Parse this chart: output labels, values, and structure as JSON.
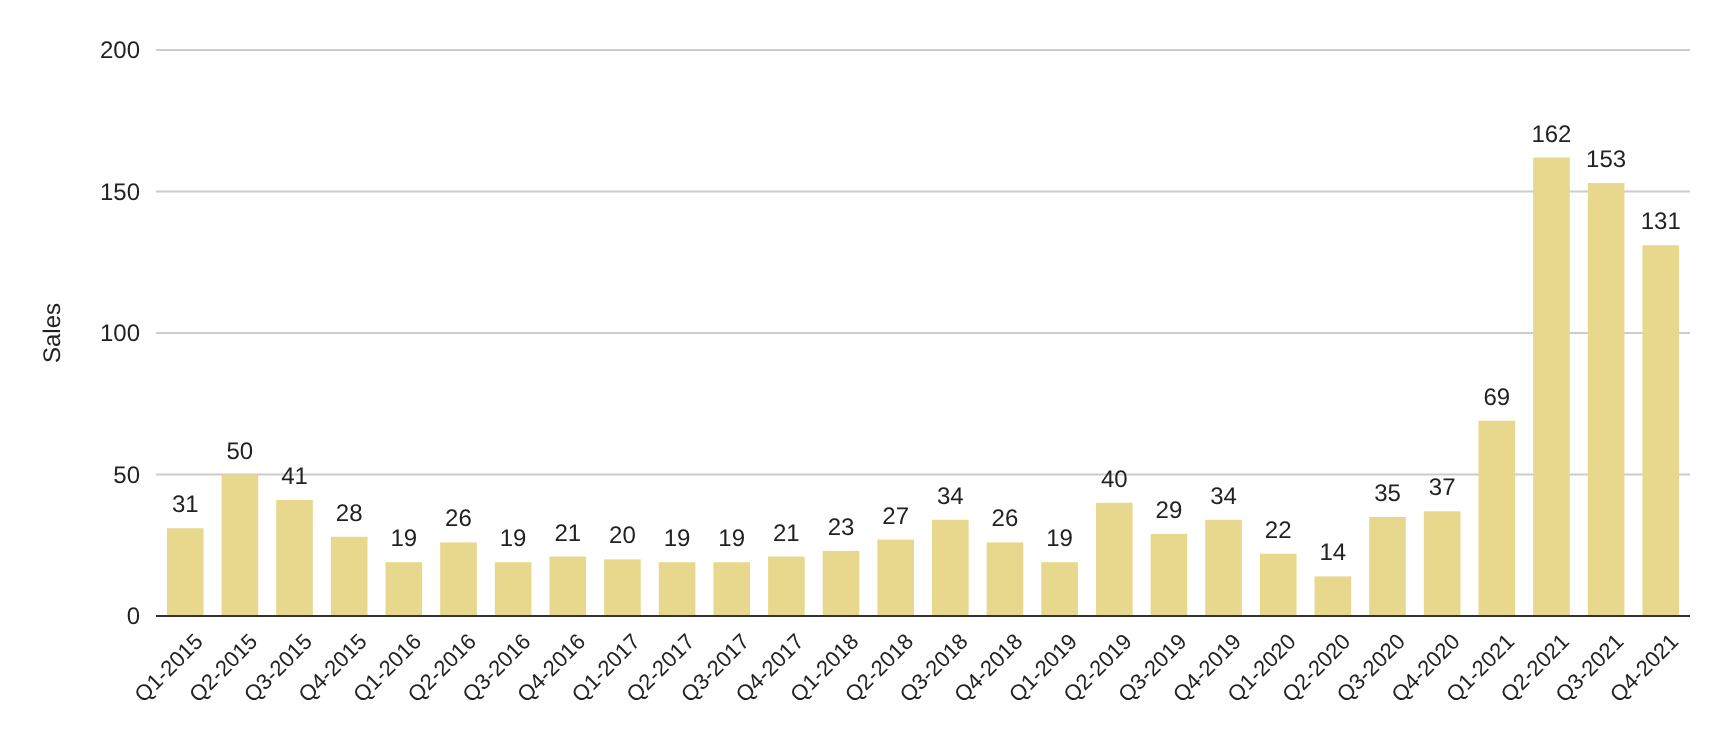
{
  "chart_data": {
    "type": "bar",
    "ylabel": "Sales",
    "categories": [
      "Q1-2015",
      "Q2-2015",
      "Q3-2015",
      "Q4-2015",
      "Q1-2016",
      "Q2-2016",
      "Q3-2016",
      "Q4-2016",
      "Q1-2017",
      "Q2-2017",
      "Q3-2017",
      "Q4-2017",
      "Q1-2018",
      "Q2-2018",
      "Q3-2018",
      "Q4-2018",
      "Q1-2019",
      "Q2-2019",
      "Q3-2019",
      "Q4-2019",
      "Q1-2020",
      "Q2-2020",
      "Q3-2020",
      "Q4-2020",
      "Q1-2021",
      "Q2-2021",
      "Q3-2021",
      "Q4-2021"
    ],
    "values": [
      31,
      50,
      41,
      28,
      19,
      26,
      19,
      21,
      20,
      19,
      19,
      21,
      23,
      27,
      34,
      26,
      19,
      40,
      29,
      34,
      22,
      14,
      35,
      37,
      69,
      162,
      153,
      131
    ],
    "color": "#e8d88e",
    "ylim": [
      0,
      200
    ],
    "yticks": [
      0,
      50,
      100,
      150,
      200
    ],
    "grid": "y",
    "data_labels": true
  }
}
